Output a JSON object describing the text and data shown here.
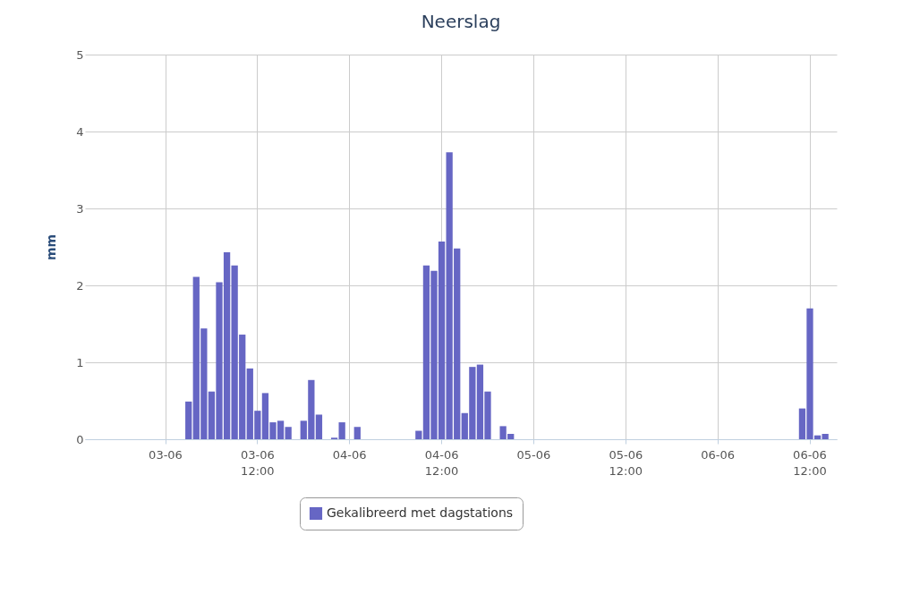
{
  "chart_data": {
    "type": "bar",
    "title": "Neerslag",
    "ylabel": "mm",
    "categories": [
      null,
      null,
      null,
      null,
      null,
      null,
      null,
      null,
      null,
      null,
      "03-06",
      null,
      null,
      null,
      null,
      null,
      null,
      null,
      null,
      null,
      null,
      null,
      "03-06 12:00",
      null,
      null,
      null,
      null,
      null,
      null,
      null,
      null,
      null,
      null,
      null,
      "04-06",
      null,
      null,
      null,
      null,
      null,
      null,
      null,
      null,
      null,
      null,
      null,
      "04-06 12:00",
      null,
      null,
      null,
      null,
      null,
      null,
      null,
      null,
      null,
      null,
      null,
      "05-06",
      null,
      null,
      null,
      null,
      null,
      null,
      null,
      null,
      null,
      null,
      null,
      "05-06 12:00",
      null,
      null,
      null,
      null,
      null,
      null,
      null,
      null,
      null,
      null,
      null,
      "06-06",
      null,
      null,
      null,
      null,
      null,
      null,
      null,
      null,
      null,
      null,
      null,
      "06-06 12:00",
      null,
      null,
      null
    ],
    "ylim": [
      0,
      5
    ],
    "yticks": [
      0,
      1,
      2,
      3,
      4,
      5
    ],
    "grid": true,
    "legend": "bottom",
    "series": [
      {
        "name": "Gekalibreerd met dagstations",
        "color": "#6666c4",
        "values": [
          null,
          null,
          null,
          null,
          null,
          null,
          null,
          null,
          null,
          null,
          null,
          null,
          null,
          0.49,
          2.11,
          1.44,
          0.62,
          2.04,
          2.43,
          2.26,
          1.36,
          0.92,
          0.37,
          0.6,
          0.22,
          0.24,
          0.16,
          null,
          0.24,
          0.77,
          0.32,
          null,
          0.02,
          0.22,
          null,
          0.16,
          null,
          null,
          null,
          null,
          null,
          null,
          null,
          0.11,
          2.26,
          2.19,
          2.57,
          3.73,
          2.48,
          0.34,
          0.94,
          0.97,
          0.62,
          null,
          0.17,
          0.07,
          null,
          null,
          null,
          null,
          null,
          null,
          null,
          null,
          null,
          null,
          null,
          null,
          null,
          null,
          null,
          null,
          null,
          null,
          null,
          null,
          null,
          null,
          null,
          null,
          null,
          null,
          null,
          null,
          null,
          null,
          null,
          null,
          null,
          null,
          null,
          null,
          null,
          0.4,
          1.7,
          0.05,
          0.07,
          null
        ]
      }
    ]
  }
}
